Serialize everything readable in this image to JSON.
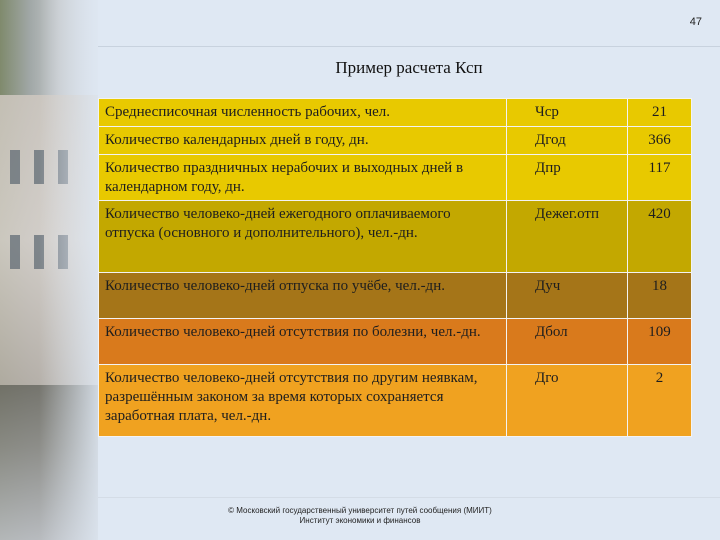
{
  "page_number": "47",
  "title": "Пример расчета Ксп",
  "colors": {
    "row_yellow": "#e8c900",
    "row_olive": "#c3a800",
    "row_ochre": "#c58f0e",
    "row_brown": "#a57518",
    "row_orange": "#d97a1c",
    "row_light_orange": "#f0a220"
  },
  "rows": [
    {
      "desc": "Среднесписочная численность рабочих, чел.",
      "sym": "Чср",
      "val": "21",
      "color": "#e8c900"
    },
    {
      "desc": "Количество календарных дней в году, дн.",
      "sym": "Дгод",
      "val": "366",
      "color": "#e8c900"
    },
    {
      "desc": "Количество праздничных нерабочих и выходных дней в календарном году, дн.",
      "sym": "Дпр",
      "val": "117",
      "color": "#e8c900"
    },
    {
      "desc": "Количество человеко-дней ежегодного оплачиваемого отпуска (основного и дополнительного), чел.-дн.",
      "sym": "Дежег.отп",
      "val": "420",
      "color": "#c3a800"
    },
    {
      "desc": "Количество человеко-дней отпуска по учёбе, чел.-дн.",
      "sym": "Дуч",
      "val": "18",
      "color": "#a57518"
    },
    {
      "desc": "Количество человеко-дней отсутствия по болезни, чел.-дн.",
      "sym": "Дбол",
      "val": "109",
      "color": "#d97a1c"
    },
    {
      "desc": "Количество человеко-дней отсутствия по другим неявкам, разрешённым законом за время которых сохраняется заработная плата, чел.-дн.",
      "sym": "Дго",
      "val": "2",
      "color": "#f0a220"
    }
  ],
  "footer": {
    "line1": "© Московский государственный университет путей сообщения (МИИТ)",
    "line2": "Институт экономики и финансов"
  }
}
